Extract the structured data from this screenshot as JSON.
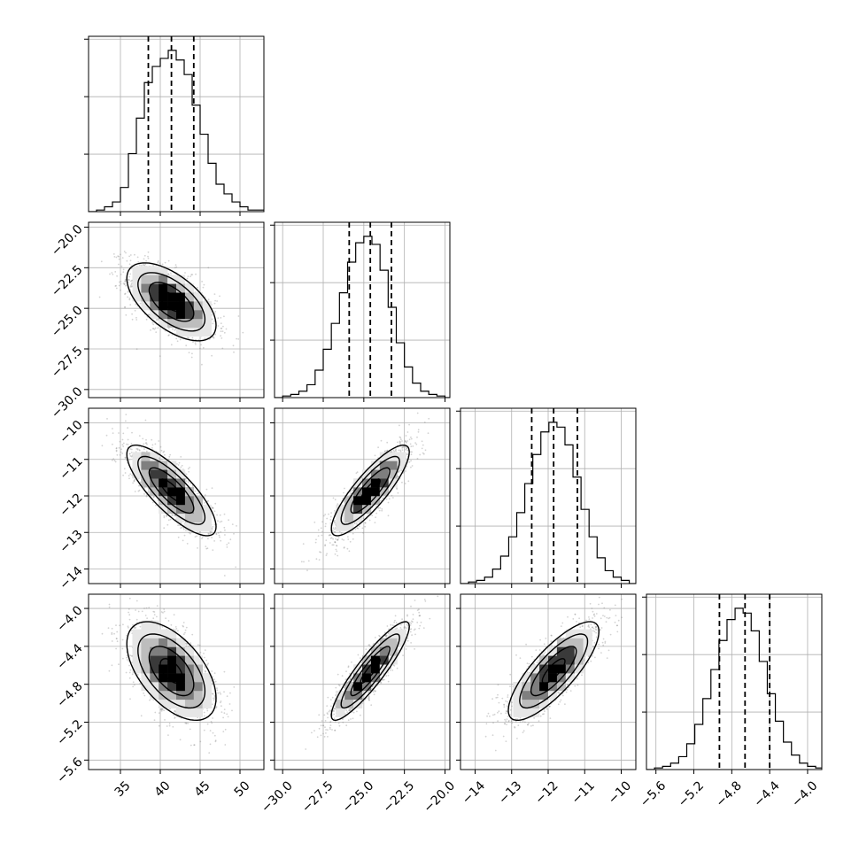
{
  "chart_data": {
    "type": "corner",
    "title": "",
    "grid": true,
    "params": [
      {
        "id": "p0",
        "range": [
          31,
          53
        ],
        "ticks": [
          35,
          40,
          45,
          50
        ],
        "tick_labels": [
          "35",
          "40",
          "45",
          "50"
        ],
        "mean": 41.4,
        "sd": 2.8,
        "quantiles": [
          38.5,
          41.4,
          44.2
        ]
      },
      {
        "id": "p1",
        "range": [
          -30.5,
          -19.7
        ],
        "ticks": [
          -30.0,
          -27.5,
          -25.0,
          -22.5,
          -20.0
        ],
        "tick_labels": [
          "−30.0",
          "−27.5",
          "−25.0",
          "−22.5",
          "−20.0"
        ],
        "mean": -24.6,
        "sd": 1.2,
        "quantiles": [
          -25.9,
          -24.6,
          -23.3
        ]
      },
      {
        "id": "p2",
        "range": [
          -14.4,
          -9.6
        ],
        "ticks": [
          -14,
          -13,
          -12,
          -11,
          -10
        ],
        "tick_labels": [
          "−14",
          "−13",
          "−12",
          "−11",
          "−10"
        ],
        "mean": -11.85,
        "sd": 0.62,
        "quantiles": [
          -12.45,
          -11.85,
          -11.2
        ]
      },
      {
        "id": "p3",
        "range": [
          -5.7,
          -3.85
        ],
        "ticks": [
          -5.6,
          -5.2,
          -4.8,
          -4.4,
          -4.0
        ],
        "tick_labels": [
          "−5.6",
          "−5.2",
          "−4.8",
          "−4.4",
          "−4.0"
        ],
        "mean": -4.66,
        "sd": 0.26,
        "quantiles": [
          -4.93,
          -4.66,
          -4.4
        ]
      }
    ],
    "correlations": {
      "1,0": -0.6,
      "2,0": -0.8,
      "2,1": 0.85,
      "3,0": -0.55,
      "3,1": 0.9,
      "3,2": 0.8
    },
    "histograms": [
      {
        "bin_edges": [
          31.0,
          32.0,
          33.0,
          34.0,
          35.0,
          36.0,
          37.0,
          38.0,
          39.0,
          40.0,
          41.0,
          42.0,
          43.0,
          44.0,
          45.0,
          46.0,
          47.0,
          48.0,
          49.0,
          50.0,
          51.0,
          52.0,
          53.0
        ],
        "counts": [
          0.0,
          0.01,
          0.03,
          0.06,
          0.15,
          0.36,
          0.58,
          0.8,
          0.9,
          0.95,
          1.0,
          0.94,
          0.85,
          0.66,
          0.48,
          0.3,
          0.17,
          0.11,
          0.06,
          0.03,
          0.01,
          0.01
        ]
      },
      {
        "bin_edges": [
          -30.5,
          -30.0,
          -29.5,
          -29.0,
          -28.5,
          -28.0,
          -27.5,
          -27.0,
          -26.5,
          -26.0,
          -25.5,
          -25.0,
          -24.5,
          -24.0,
          -23.5,
          -23.0,
          -22.5,
          -22.0,
          -21.5,
          -21.0,
          -20.5,
          -20.0,
          -19.5
        ],
        "counts": [
          0.0,
          0.01,
          0.02,
          0.04,
          0.08,
          0.17,
          0.3,
          0.46,
          0.65,
          0.84,
          0.96,
          1.0,
          0.95,
          0.79,
          0.56,
          0.34,
          0.19,
          0.09,
          0.04,
          0.02,
          0.01,
          0.0
        ]
      },
      {
        "bin_edges": [
          -14.4,
          -14.18,
          -13.96,
          -13.74,
          -13.52,
          -13.3,
          -13.08,
          -12.86,
          -12.64,
          -12.42,
          -12.2,
          -11.98,
          -11.76,
          -11.54,
          -11.32,
          -11.1,
          -10.88,
          -10.66,
          -10.44,
          -10.22,
          -10.0,
          -9.78,
          -9.6
        ],
        "counts": [
          0.0,
          0.01,
          0.02,
          0.04,
          0.09,
          0.17,
          0.29,
          0.44,
          0.62,
          0.8,
          0.94,
          1.0,
          0.97,
          0.86,
          0.66,
          0.46,
          0.29,
          0.16,
          0.08,
          0.04,
          0.02,
          0.0
        ]
      },
      {
        "bin_edges": [
          -5.7,
          -5.615,
          -5.53,
          -5.445,
          -5.36,
          -5.275,
          -5.19,
          -5.105,
          -5.02,
          -4.935,
          -4.85,
          -4.765,
          -4.68,
          -4.595,
          -4.51,
          -4.425,
          -4.34,
          -4.255,
          -4.17,
          -4.085,
          -4.0,
          -3.915,
          -3.85
        ],
        "counts": [
          0.0,
          0.01,
          0.02,
          0.04,
          0.08,
          0.16,
          0.28,
          0.44,
          0.62,
          0.8,
          0.93,
          1.0,
          0.97,
          0.86,
          0.67,
          0.47,
          0.3,
          0.17,
          0.09,
          0.04,
          0.02,
          0.01
        ]
      }
    ],
    "contour_levels_sigma": [
      0.5,
      1.0,
      1.5,
      2.0
    ],
    "contour_line_color": "#000000",
    "scatter_color": "#808080",
    "density_colormap": [
      "#ffffff",
      "#e6e6e6",
      "#bdbdbd",
      "#7f7f7f",
      "#3a3a3a",
      "#000000"
    ]
  }
}
